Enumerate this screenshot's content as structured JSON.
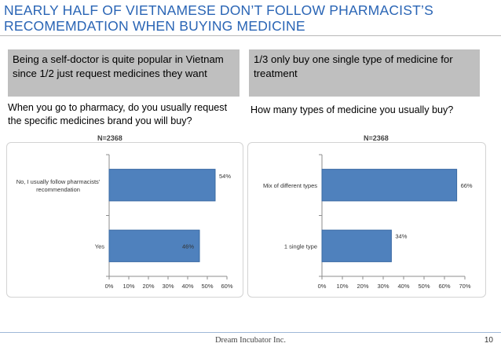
{
  "title": {
    "line1": "NEARLY HALF OF VIETNAMESE DON’T FOLLOW PHARMACIST’S",
    "line2": "RECOMEMDATION WHEN BUYING MEDICINE"
  },
  "left": {
    "box_text": "Being a self-doctor is quite popular in Vietnam since 1/2 just request medicines they want",
    "question": "When you go to pharmacy, do you usually request the specific medicines brand you will buy?",
    "n_label": "N=2368"
  },
  "right": {
    "box_text": "1/3 only buy one single type of medicine for treatment",
    "question": "How many types of medicine you usually buy?",
    "n_label": "N=2368"
  },
  "footer": {
    "company": "Dream Incubator Inc.",
    "page": "10"
  },
  "colors": {
    "bar": "#4f81bd",
    "bar_border": "#3a6aa3",
    "title": "#2a65b5",
    "box": "#bfbfbf"
  },
  "chart_data": [
    {
      "type": "bar",
      "orientation": "horizontal",
      "categories": [
        "No, I usually follow pharmacists' recommendation",
        "Yes"
      ],
      "category_lines": [
        [
          "No, I usually follow pharmacists'",
          "recommendation"
        ],
        [
          "Yes"
        ]
      ],
      "values": [
        54,
        46
      ],
      "value_labels": [
        "54%",
        "46%"
      ],
      "xlim": [
        0,
        60
      ],
      "xticks": [
        "0%",
        "10%",
        "20%",
        "30%",
        "40%",
        "50%",
        "60%"
      ],
      "grid": false,
      "title": "N=2368"
    },
    {
      "type": "bar",
      "orientation": "horizontal",
      "categories": [
        "Mix of different types",
        "1 single type"
      ],
      "category_lines": [
        [
          "Mix of different types"
        ],
        [
          "1 single type"
        ]
      ],
      "values": [
        66,
        34
      ],
      "value_labels": [
        "66%",
        "34%"
      ],
      "xlim": [
        0,
        70
      ],
      "xticks": [
        "0%",
        "10%",
        "20%",
        "30%",
        "40%",
        "50%",
        "60%",
        "70%"
      ],
      "grid": false,
      "title": "N=2368"
    }
  ]
}
